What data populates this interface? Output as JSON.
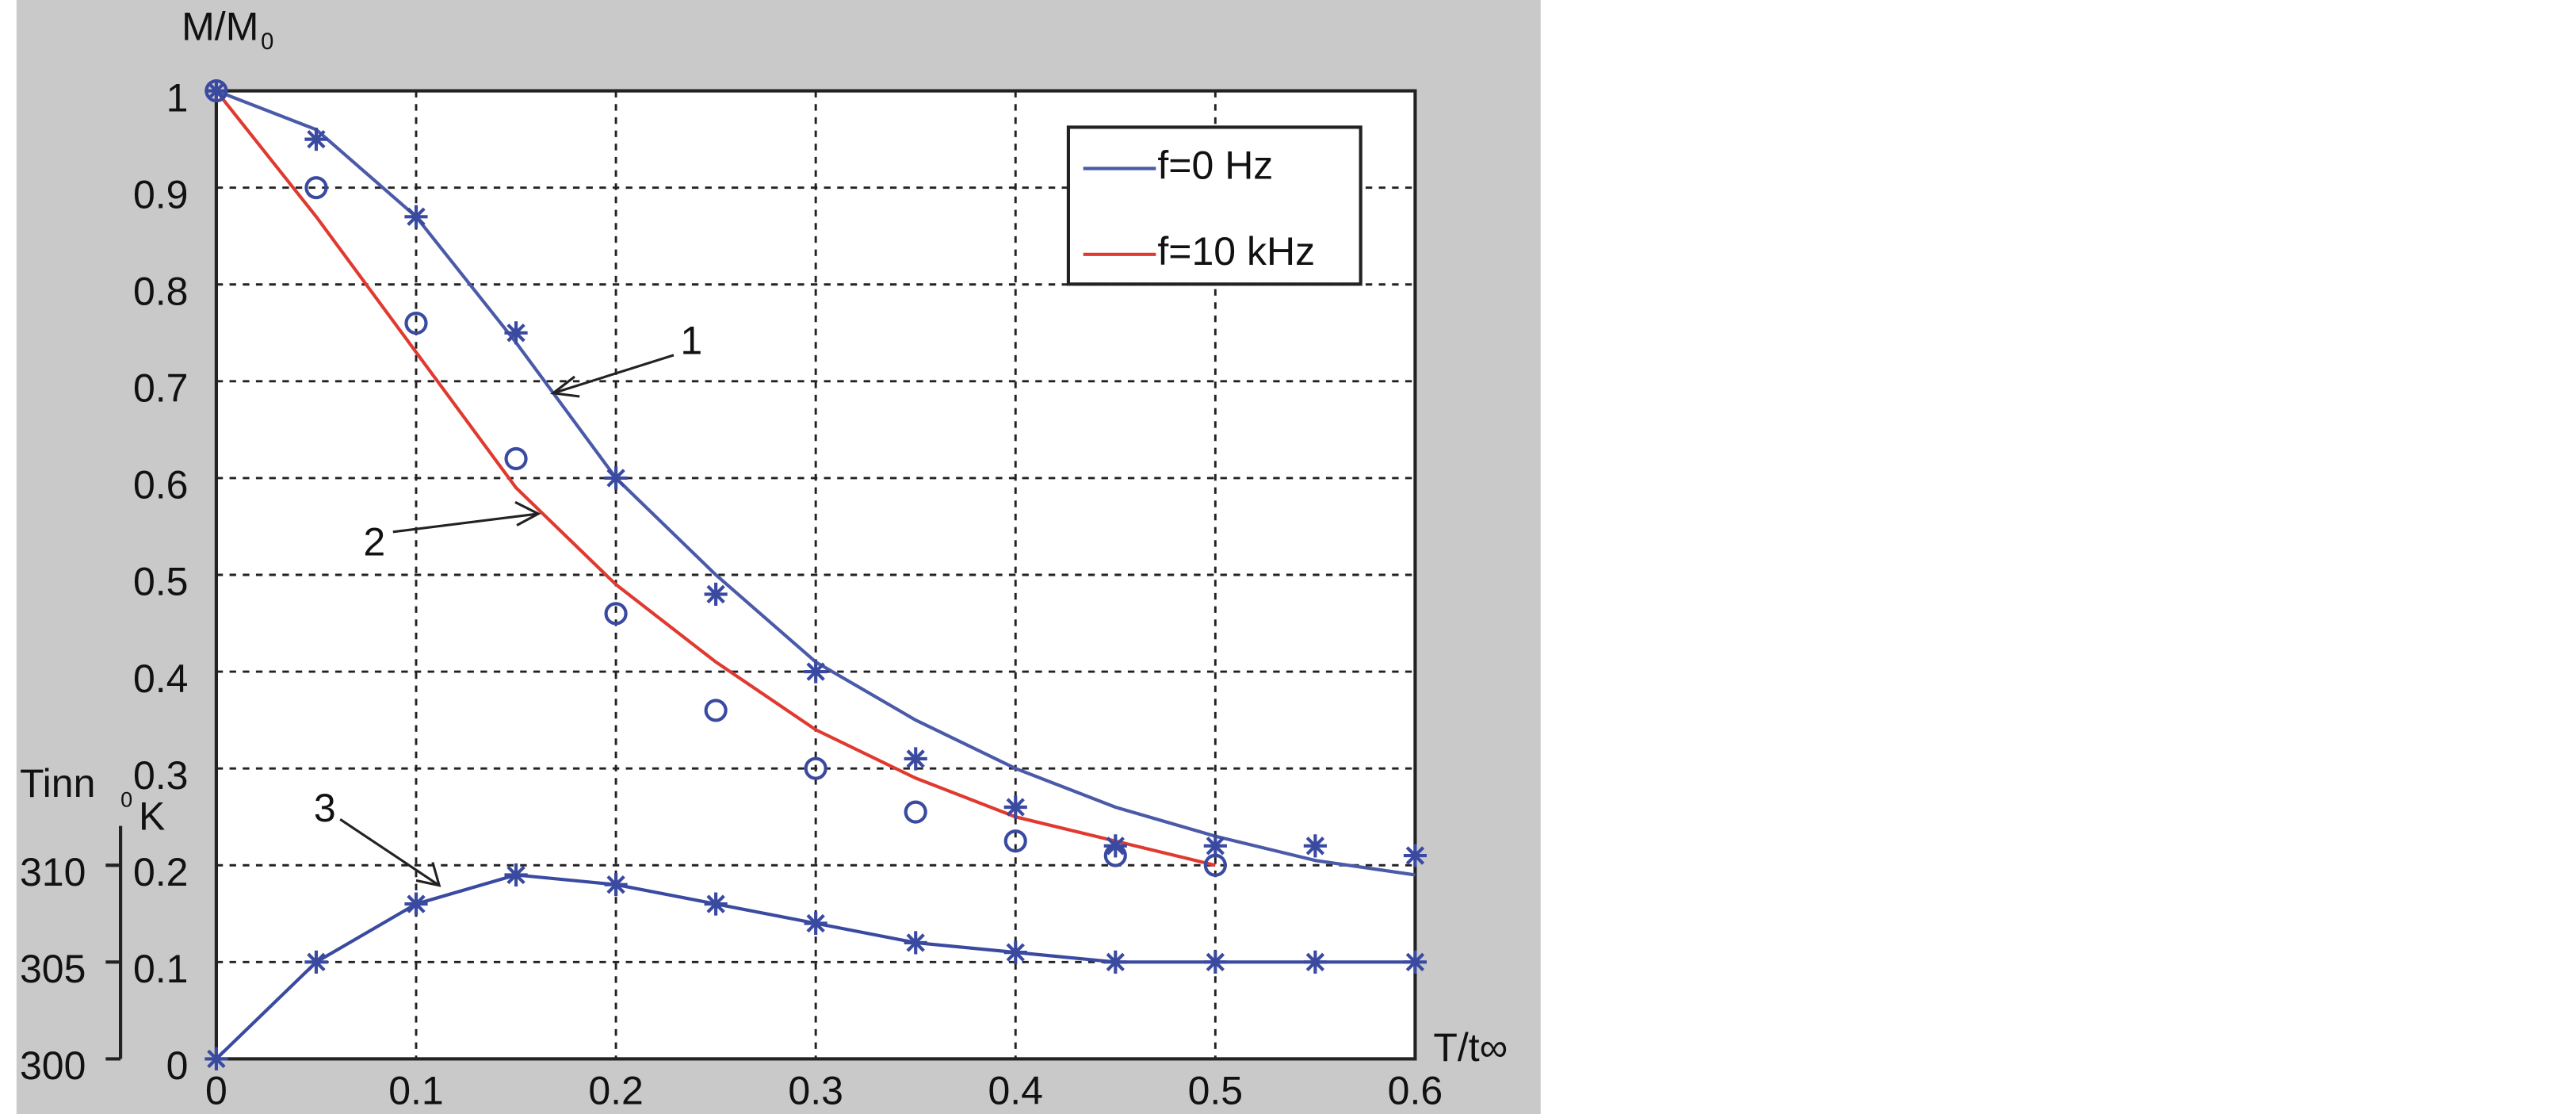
{
  "chart_data": {
    "type": "line",
    "x_label": "T/t∞",
    "y_label": {
      "text": "M/M",
      "subscript": "0"
    },
    "y2_label": {
      "text": "Tinn",
      "superscript": "0",
      "unit": "K"
    },
    "x": [
      0,
      0.05,
      0.1,
      0.15,
      0.2,
      0.25,
      0.3,
      0.35,
      0.4,
      0.45,
      0.5,
      0.55,
      0.6
    ],
    "xlim": [
      0,
      0.6
    ],
    "xticks": [
      0,
      0.1,
      0.2,
      0.3,
      0.4,
      0.5,
      0.6
    ],
    "ylim": [
      0,
      1
    ],
    "yticks": [
      0,
      0.1,
      0.2,
      0.3,
      0.4,
      0.5,
      0.6,
      0.7,
      0.8,
      0.9,
      1
    ],
    "y2lim": [
      300,
      350
    ],
    "y2ticks": [
      300,
      305,
      310
    ],
    "grid": true,
    "legend": "upper right",
    "series": [
      {
        "name": "f=0 Hz",
        "color": "#4a5aa8",
        "style": "line",
        "values": [
          1,
          0.96,
          0.87,
          0.74,
          0.6,
          0.5,
          0.41,
          0.35,
          0.3,
          0.26,
          0.23,
          0.205,
          0.19
        ]
      },
      {
        "name": "f=10 kHz",
        "color": "#e03a30",
        "style": "line",
        "values": [
          1,
          0.87,
          0.73,
          0.59,
          0.49,
          0.41,
          0.34,
          0.29,
          0.25,
          0.225,
          0.2,
          null,
          null
        ]
      },
      {
        "color": "#3a4aa0",
        "style": "star",
        "values": [
          1,
          0.95,
          0.87,
          0.75,
          0.6,
          0.48,
          0.4,
          0.31,
          0.26,
          0.22,
          0.22,
          0.22,
          0.21
        ]
      },
      {
        "color": "#3a4aa0",
        "style": "circle",
        "values": [
          1,
          0.9,
          0.76,
          0.62,
          0.46,
          0.36,
          0.3,
          0.255,
          0.225,
          0.21,
          0.2,
          null,
          null
        ]
      },
      {
        "color": "#3a4aa0",
        "style": "line-star",
        "values": [
          0,
          0.1,
          0.16,
          0.19,
          0.18,
          0.16,
          0.14,
          0.12,
          0.11,
          0.1,
          0.1,
          0.1,
          0.1
        ]
      }
    ],
    "annotations": [
      "1",
      "2",
      "3"
    ]
  }
}
